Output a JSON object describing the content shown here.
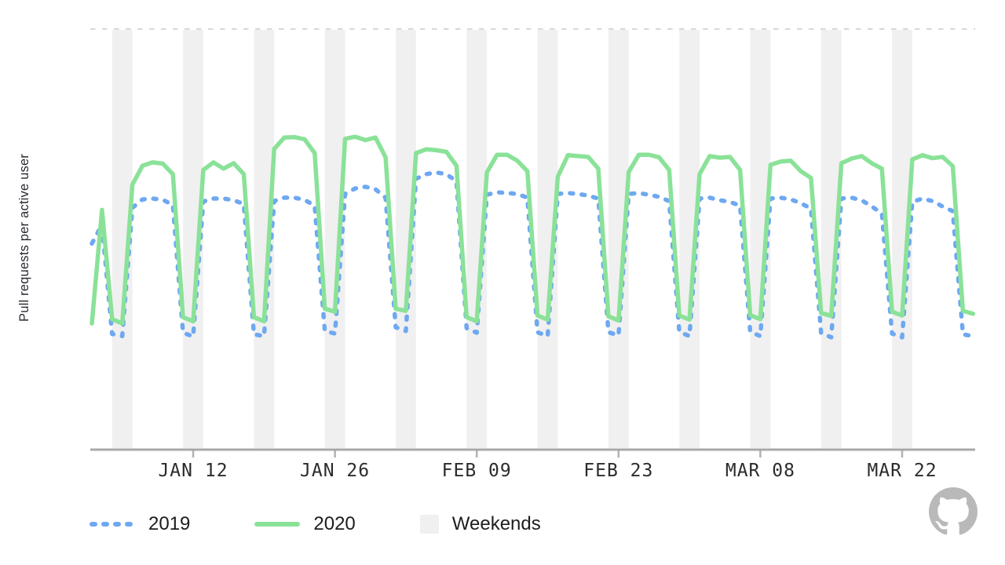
{
  "colors": {
    "background": "#ffffff",
    "weekend_band": "#f0f0f0",
    "reference_line": "#cbcbcb",
    "axis_line": "#a8a8a8",
    "tick_mark": "#b2b2b2",
    "tick_label_text": "#2c2c2c",
    "legend_text": "#1d1d1d",
    "y_axis_label_text": "#24292f",
    "series_2019": "#6ea8f1",
    "series_2020": "#8ae298",
    "logo": "#b9b9b9"
  },
  "legend": {
    "items": [
      {
        "label": "2019",
        "swatch": "dashed-line",
        "color": "#6ea8f1"
      },
      {
        "label": "2020",
        "swatch": "solid-line",
        "color": "#8ae298"
      },
      {
        "label": "Weekends",
        "swatch": "filled-square",
        "color": "#f0f0f0"
      }
    ]
  },
  "branding": {
    "logo": "github-octocat-mark",
    "color": "#b9b9b9"
  },
  "chart_data": {
    "type": "line",
    "title": "",
    "xlabel": "",
    "ylabel": "Pull requests per active user",
    "x_start_date": "2020-01-02",
    "x_end_date": "2020-03-29",
    "x_frequency": "daily",
    "x_tick_labels": [
      "JAN 12",
      "JAN 26",
      "FEB 09",
      "FEB 23",
      "MAR 08",
      "MAR 22"
    ],
    "x_tick_day_indices": [
      10,
      24,
      38,
      52,
      66,
      80
    ],
    "weekend_shading": true,
    "weekend_start_day_indices": [
      2,
      9,
      16,
      23,
      30,
      37,
      44,
      51,
      58,
      65,
      72,
      79
    ],
    "y_axis": {
      "min": 0,
      "max": 100,
      "numeric_ticks_shown": false,
      "note": "relative index scale; dashed reference line at top of plot = 100"
    },
    "legend_position": "bottom-left",
    "grid": false,
    "series": [
      {
        "name": "2019",
        "style": "dashed",
        "color": "#6ea8f1",
        "values": [
          49,
          53.5,
          27.5,
          27,
          57.5,
          59.5,
          59.7,
          59.4,
          58.2,
          27.8,
          26.9,
          59,
          59.7,
          59.7,
          59.3,
          58.4,
          27.4,
          27,
          59.1,
          59.9,
          59.9,
          59.4,
          58,
          28.2,
          27.6,
          60.8,
          62.1,
          62.5,
          61.9,
          59.9,
          29.1,
          28.2,
          64.4,
          65.5,
          65.9,
          65.5,
          63.8,
          28.9,
          27.8,
          60.6,
          61.2,
          61,
          60.8,
          59.9,
          27.9,
          27,
          60.8,
          61,
          60.8,
          60.4,
          59.7,
          27.9,
          27.2,
          60.8,
          61,
          60.6,
          60.1,
          59.1,
          28,
          27,
          59.7,
          59.9,
          59.3,
          58.9,
          58,
          28,
          27,
          59.7,
          59.9,
          59.5,
          58.6,
          57.3,
          27.7,
          26.7,
          59.7,
          59.9,
          59.3,
          57.8,
          56.2,
          27.6,
          26.7,
          58.9,
          59.7,
          59.1,
          57.8,
          56.7,
          27.4,
          27
        ]
      },
      {
        "name": "2020",
        "style": "solid",
        "color": "#8ae298",
        "values": [
          30,
          57,
          31,
          30,
          63,
          67.5,
          68.3,
          68,
          65.5,
          31.5,
          30.5,
          66.5,
          68.3,
          66.8,
          68.1,
          65.5,
          31.5,
          30.5,
          71.5,
          74.2,
          74.3,
          73.8,
          70.5,
          33.5,
          32.8,
          73.9,
          74.4,
          73.6,
          74.2,
          69.5,
          33.5,
          33,
          70.5,
          71.4,
          71.2,
          70.8,
          67.5,
          31.5,
          30.5,
          65.9,
          70.1,
          70.1,
          68.7,
          66.2,
          31.9,
          30.9,
          64.9,
          70,
          69.8,
          69.6,
          66.8,
          31.7,
          30.7,
          66,
          70.1,
          70.1,
          69.5,
          66.5,
          31.9,
          30.9,
          65.5,
          69.8,
          69.4,
          69.6,
          66.5,
          32,
          31,
          67.7,
          68.5,
          68.7,
          66.2,
          64.6,
          32.5,
          31.8,
          68.1,
          69.2,
          69.8,
          68.1,
          66.8,
          32.8,
          31.9,
          69,
          70,
          69.3,
          69.6,
          67.4,
          33,
          32.3
        ]
      }
    ]
  }
}
